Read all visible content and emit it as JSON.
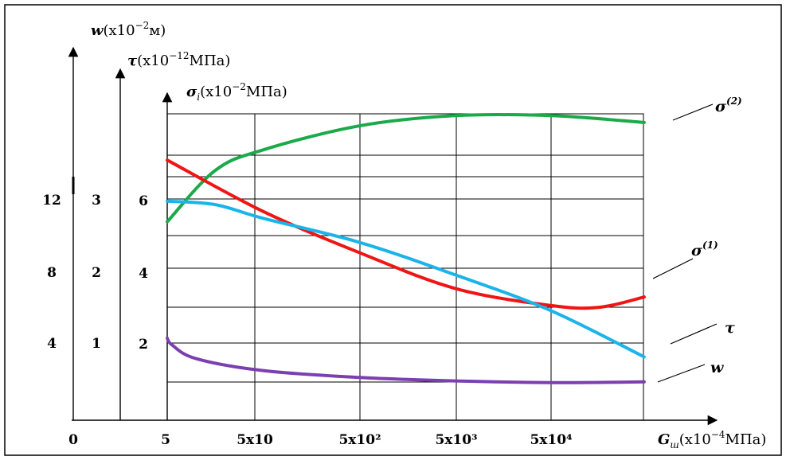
{
  "chart_data": {
    "type": "line",
    "x": {
      "categories": [
        "5",
        "5x10",
        "5x10²",
        "5x10³",
        "5x10⁴"
      ],
      "origin_label": "0",
      "axis_label": {
        "symbol": "G",
        "subscript": "ш",
        "unit_prefix": "(x10",
        "exp": "−4",
        "unit": "МПа)"
      }
    },
    "y_axes": [
      {
        "id": "w",
        "symbol": "w",
        "subscript": "",
        "unit_prefix": "(x10",
        "exp": "−2",
        "unit": "м)",
        "ticks": [
          "4",
          "8",
          "12"
        ]
      },
      {
        "id": "tau",
        "symbol": "τ",
        "subscript": "",
        "unit_prefix": "(x10",
        "exp": "−12",
        "unit": "МПа)",
        "ticks": [
          "1",
          "2",
          "3"
        ]
      },
      {
        "id": "sigma",
        "symbol": "σ",
        "subscript": "i",
        "unit_prefix": "(x10",
        "exp": "−2",
        "unit": "МПа)",
        "ticks": [
          "2",
          "4",
          "6"
        ]
      }
    ],
    "grid": true,
    "series": [
      {
        "name": "σ⁽²⁾",
        "label_base": "σ",
        "label_sup": "(2)",
        "color": "#1aaa4a",
        "x": [
          0,
          0.5,
          1,
          2,
          3,
          4,
          4.97
        ],
        "y": [
          5.8,
          7.3,
          7.9,
          8.6,
          8.9,
          8.9,
          8.7
        ]
      },
      {
        "name": "σ⁽¹⁾",
        "label_base": "σ",
        "label_sup": "(1)",
        "color": "#f01414",
        "x": [
          0,
          1,
          2,
          3,
          4,
          4.5,
          4.97
        ],
        "y": [
          7.6,
          6.1,
          4.9,
          3.85,
          3.35,
          3.3,
          3.6
        ]
      },
      {
        "name": "τ",
        "label_base": "τ",
        "label_sup": "",
        "color": "#1ab4ea",
        "x": [
          0,
          0.5,
          1,
          2,
          3,
          4,
          4.97
        ],
        "y": [
          6.4,
          6.3,
          5.9,
          5.2,
          4.25,
          3.2,
          1.85
        ]
      },
      {
        "name": "w",
        "label_base": "w",
        "label_sup": "",
        "color": "#7b3fb0",
        "x": [
          0,
          0.05,
          0.3,
          1,
          2,
          3,
          4,
          4.97
        ],
        "y": [
          2.4,
          2.2,
          1.8,
          1.45,
          1.25,
          1.15,
          1.1,
          1.12
        ]
      }
    ]
  }
}
